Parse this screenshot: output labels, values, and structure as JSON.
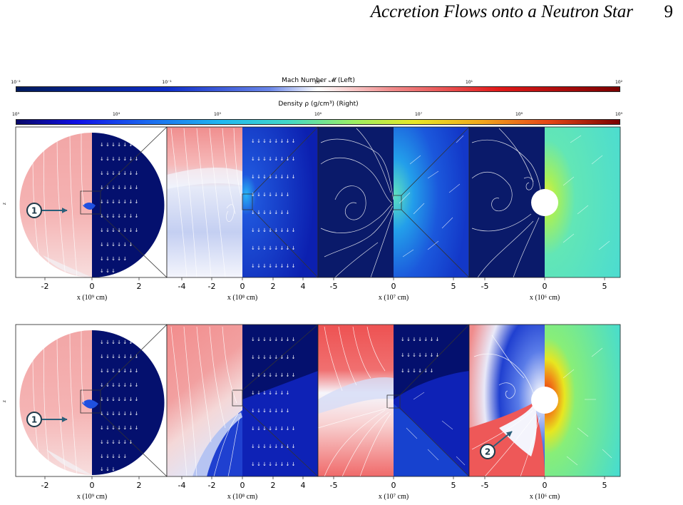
{
  "header": {
    "title": "Accretion Flows onto a Neutron Star",
    "page_number": "9"
  },
  "colorbars": {
    "mach": {
      "label": "Mach Number 𝓜 (Left)",
      "ticks": [
        "10⁻²",
        "10⁻¹",
        "10⁰",
        "10¹",
        "10²"
      ]
    },
    "density": {
      "label": "Density ρ (g/cm³) (Right)",
      "ticks": [
        "10³",
        "10⁴",
        "10⁵",
        "10⁶",
        "10⁷",
        "10⁸",
        "10⁹"
      ]
    }
  },
  "panels": {
    "ylabel": "z",
    "xlabels": [
      "x (10⁹ cm)",
      "x (10⁸ cm)",
      "x (10⁷ cm)",
      "x (10⁶ cm)"
    ],
    "xticks": [
      [
        "-2",
        "0",
        "2"
      ],
      [
        "-4",
        "-2",
        "0",
        "2",
        "4"
      ],
      [
        "-5",
        "0",
        "5"
      ],
      [
        "-5",
        "0",
        "5"
      ]
    ]
  },
  "markers": {
    "row1": [
      "1"
    ],
    "row2": [
      "1",
      "2"
    ]
  },
  "colors": {
    "mach_subsonic": "#0a1a7a",
    "mach_supersonic": "#f4a0a0",
    "density_low": "#0f25c8",
    "density_mid": "#58e0c8",
    "marker_fill": "#2c5f7a"
  }
}
